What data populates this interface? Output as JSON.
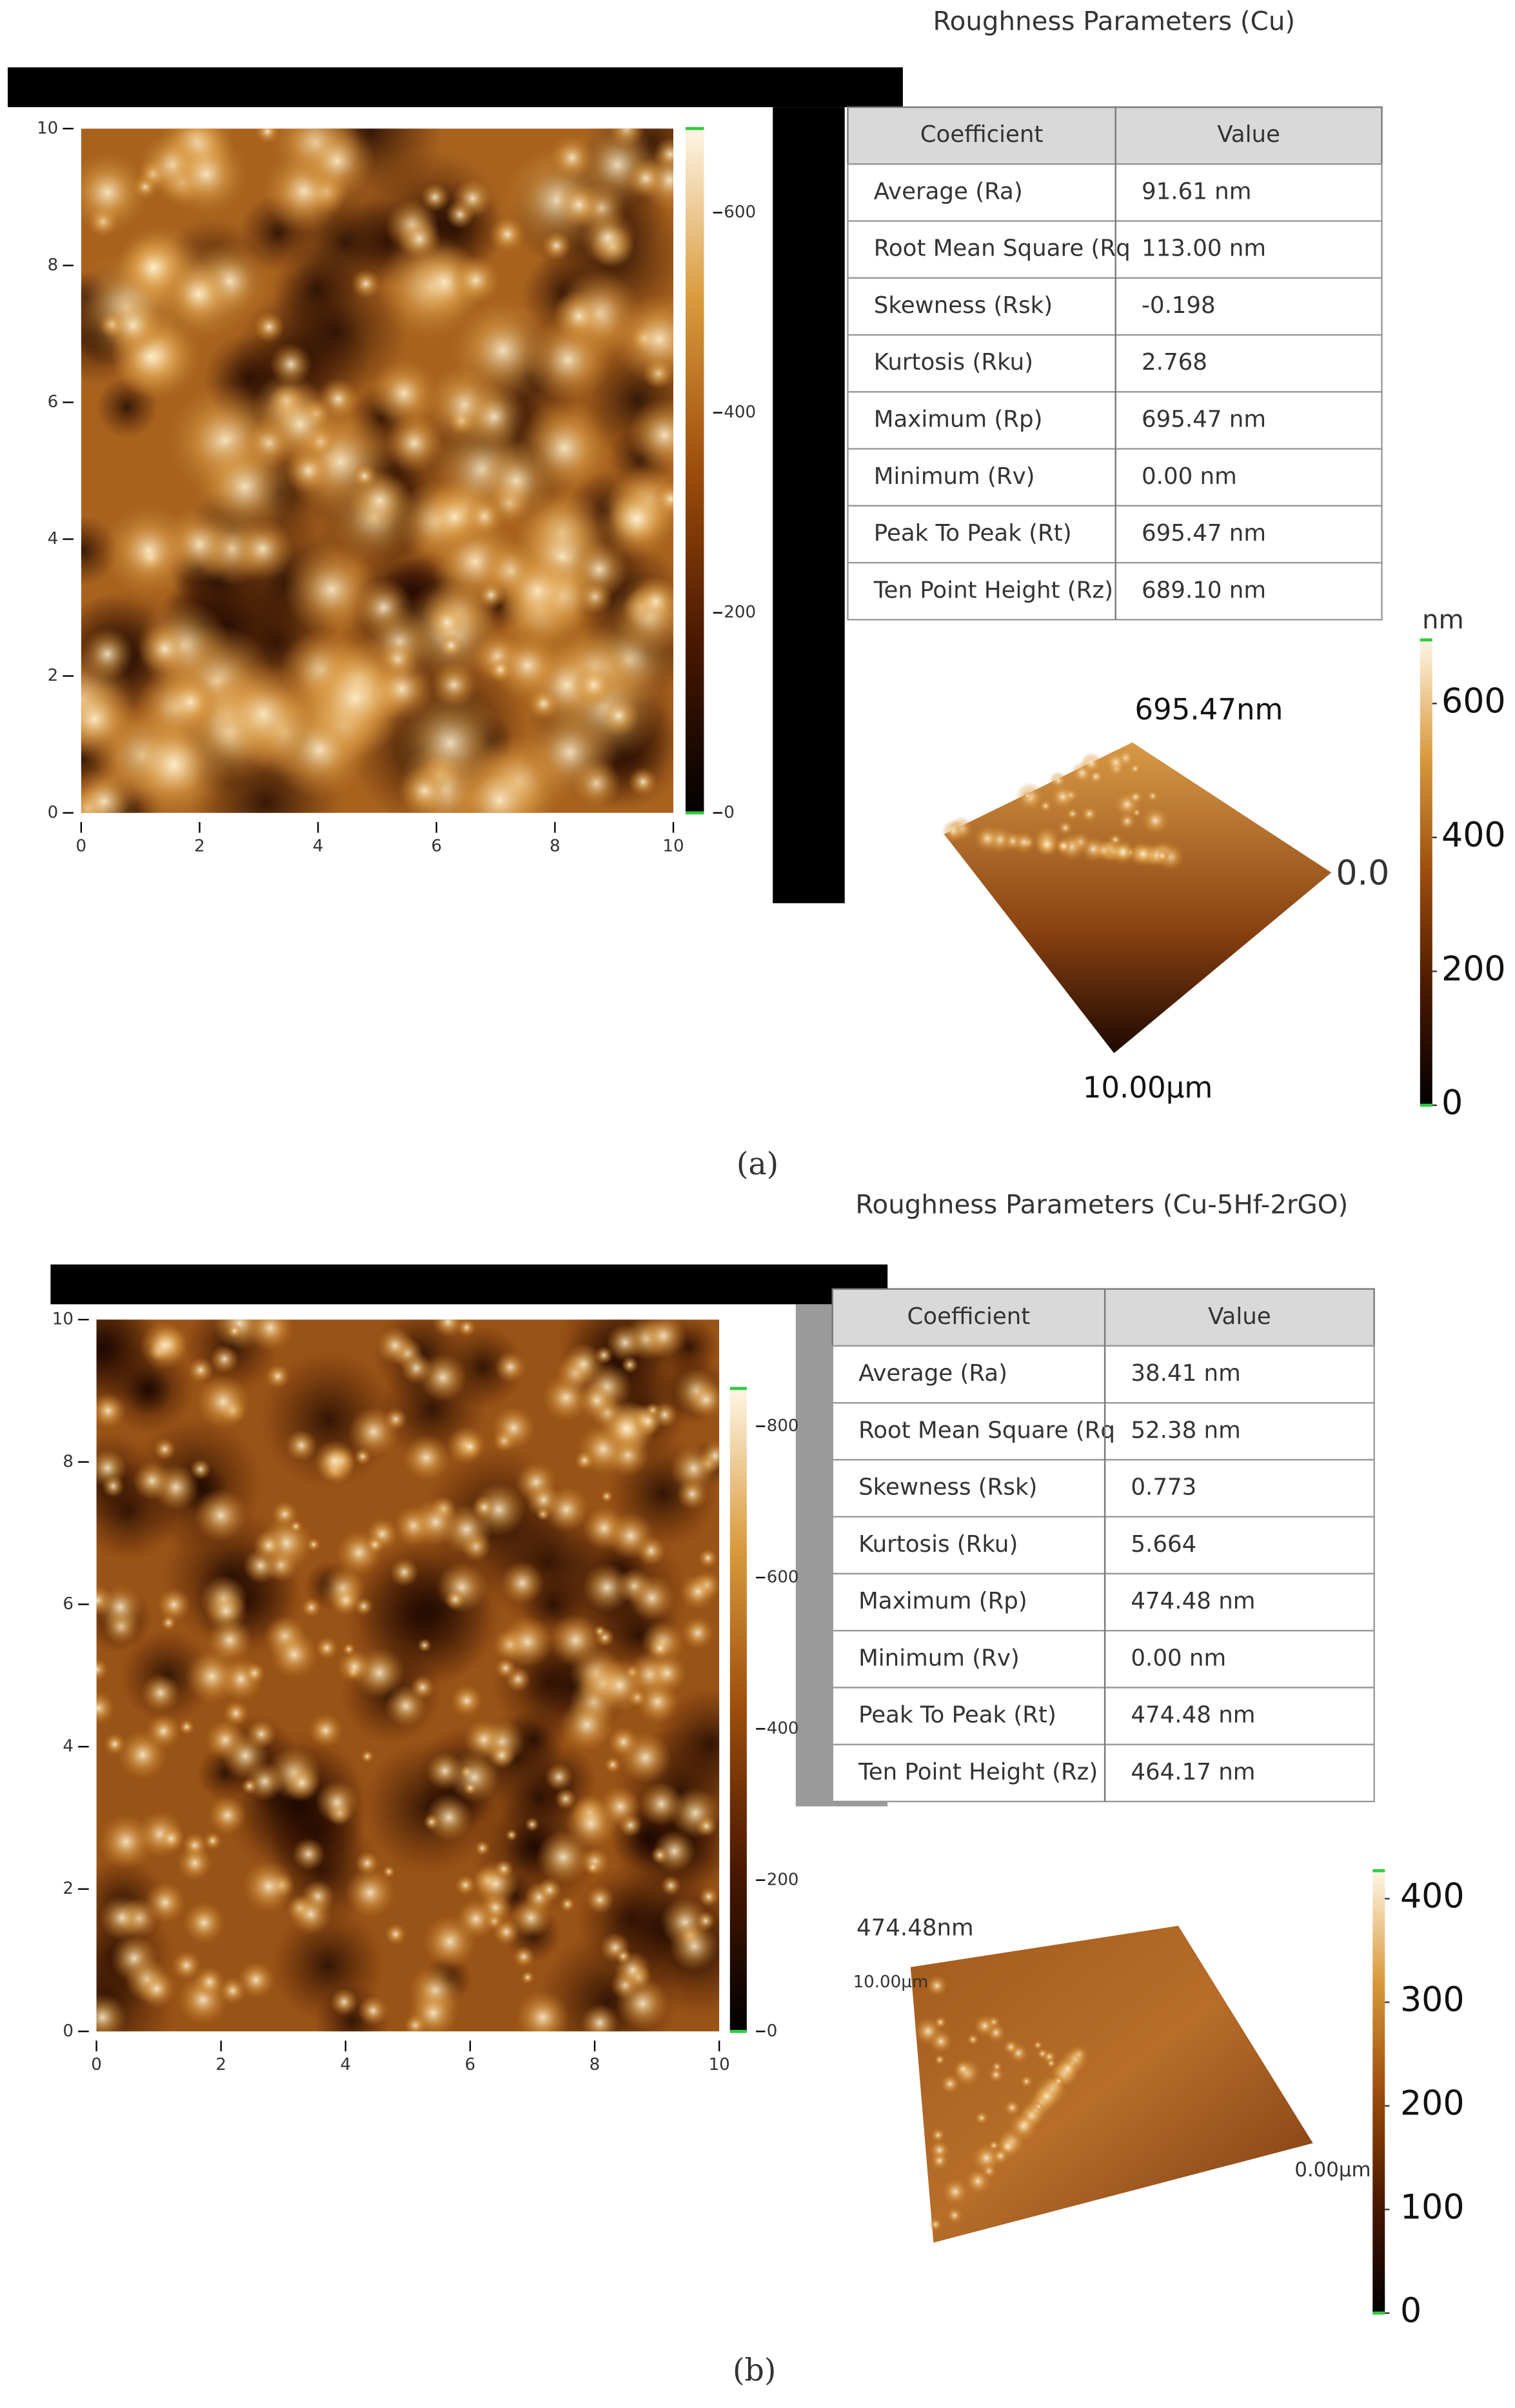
{
  "panels": [
    {
      "label": "(a)",
      "table": {
        "title": "Roughness Parameters (Cu)",
        "header": [
          "Coefficient",
          "Value"
        ],
        "rows": [
          [
            "Average (Ra)",
            "91.61 nm"
          ],
          [
            "Root Mean Square (Rq",
            "113.00 nm"
          ],
          [
            "Skewness (Rsk)",
            "-0.198"
          ],
          [
            "Kurtosis (Rku)",
            "2.768"
          ],
          [
            "Maximum (Rp)",
            "695.47 nm"
          ],
          [
            "Minimum (Rv)",
            "0.00 nm"
          ],
          [
            "Peak To Peak (Rt)",
            "695.47 nm"
          ],
          [
            "Ten Point Height (Rz)",
            "689.10 nm"
          ]
        ]
      },
      "map": {
        "xlim": [
          0,
          10
        ],
        "ylim": [
          0,
          10
        ],
        "xticks": [
          0,
          2,
          4,
          6,
          8,
          10
        ],
        "yticks": [
          0,
          2,
          4,
          6,
          8,
          10
        ],
        "scale_lim": [
          0,
          684
        ],
        "scale_ticks": [
          0,
          200,
          400,
          600
        ]
      },
      "surface": {
        "peak_label": "695.47nm",
        "z_label": "0.0",
        "length_label": "10.00µm",
        "scale_unit": "nm",
        "scale_lim": [
          0,
          695
        ],
        "scale_ticks": [
          0,
          200,
          400,
          600
        ]
      }
    },
    {
      "label": "(b)",
      "table": {
        "title": "Roughness Parameters (Cu-5Hf-2rGO)",
        "header": [
          "Coefficient",
          "Value"
        ],
        "rows": [
          [
            "Average (Ra)",
            "38.41 nm"
          ],
          [
            "Root Mean Square (Rq",
            "52.38 nm"
          ],
          [
            "Skewness (Rsk)",
            "0.773"
          ],
          [
            "Kurtosis (Rku)",
            "5.664"
          ],
          [
            "Maximum (Rp)",
            "474.48 nm"
          ],
          [
            "Minimum (Rv)",
            "0.00 nm"
          ],
          [
            "Peak To Peak (Rt)",
            "474.48 nm"
          ],
          [
            "Ten Point Height (Rz)",
            "464.17 nm"
          ]
        ]
      },
      "map": {
        "xlim": [
          0,
          10
        ],
        "ylim": [
          0,
          10
        ],
        "xticks": [
          0,
          2,
          4,
          6,
          8,
          10
        ],
        "yticks": [
          0,
          2,
          4,
          6,
          8,
          10
        ],
        "scale_lim": [
          0,
          850
        ],
        "scale_ticks": [
          0,
          200,
          400,
          600,
          800
        ]
      },
      "surface": {
        "peak_label": "474.48nm",
        "length_label": "10.00µm",
        "z_label": "0.00µm",
        "scale_lim": [
          0,
          427
        ],
        "scale_ticks": [
          0,
          100,
          200,
          300,
          400
        ]
      }
    }
  ]
}
